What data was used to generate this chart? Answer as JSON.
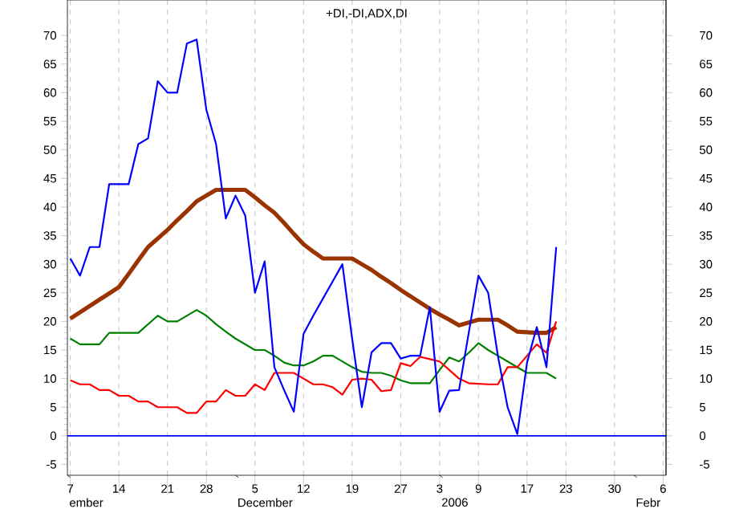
{
  "chart_data": {
    "type": "line",
    "title": "+DI,-DI,ADX,DI",
    "categories": [
      "7",
      null,
      null,
      null,
      null,
      "14",
      null,
      null,
      null,
      null,
      "21",
      null,
      null,
      null,
      "28",
      null,
      null,
      null,
      null,
      "5",
      null,
      null,
      null,
      null,
      "12",
      null,
      null,
      null,
      null,
      "19",
      null,
      null,
      null,
      null,
      "27",
      null,
      null,
      null,
      "3",
      null,
      null,
      null,
      "9",
      null,
      null,
      null,
      null,
      "17",
      null,
      null,
      null,
      "23",
      null,
      null,
      null,
      null,
      "30",
      null,
      null,
      null,
      null,
      "6"
    ],
    "ylim": [
      -6.9,
      76.2
    ],
    "yticks": [
      -5,
      0,
      5,
      10,
      15,
      20,
      25,
      30,
      35,
      40,
      45,
      50,
      55,
      60,
      65,
      70
    ],
    "y2lim": [
      -6.9,
      76.2
    ],
    "y2ticks": [
      -5,
      0,
      5,
      10,
      15,
      20,
      25,
      30,
      35,
      40,
      45,
      50,
      55,
      60,
      65,
      70
    ],
    "grid": "x",
    "annotations": [
      "ember",
      "December",
      "2006",
      "Febr"
    ],
    "ref_lines": [
      {
        "axis": "y",
        "value": 0,
        "color": "#0000ff"
      }
    ],
    "series": [
      {
        "color": "#993300",
        "values": [
          20.5,
          21.6,
          22.7,
          23.8,
          24.9,
          26,
          28.3,
          30.7,
          33,
          34.5,
          36,
          37.7,
          39.3,
          41,
          42,
          43,
          43,
          43,
          43,
          41.7,
          40.3,
          39,
          37.2,
          35.3,
          33.5,
          32.2,
          31,
          31,
          31,
          31,
          30,
          29,
          27.8,
          26.7,
          25.5,
          24.4,
          23.3,
          22.2,
          21.2,
          20.3,
          19.3,
          19.8,
          20.3,
          20.3,
          20.3,
          19.3,
          18.2,
          18.1,
          18,
          18,
          19,
          null,
          null,
          null,
          null,
          null,
          null,
          null,
          null,
          null,
          null,
          null
        ]
      },
      {
        "color": "#008000",
        "values": [
          17,
          16,
          16,
          16,
          18,
          18,
          18,
          18,
          19.5,
          21,
          20,
          20,
          21,
          22,
          21,
          19.5,
          18.2,
          17,
          16,
          15,
          15,
          14,
          12.8,
          12.3,
          12.3,
          13,
          14,
          14,
          13,
          12,
          11.2,
          11,
          11,
          10.5,
          9.7,
          9.2,
          9.2,
          9.2,
          11.5,
          13.7,
          13,
          14.5,
          16.2,
          15,
          14,
          13,
          12,
          11,
          11,
          11,
          10,
          null,
          null,
          null,
          null,
          null,
          null,
          null,
          null,
          null,
          null,
          null
        ]
      },
      {
        "color": "#ff0000",
        "values": [
          9.7,
          9,
          9,
          8,
          8,
          7,
          7,
          6,
          6,
          5,
          5,
          5,
          4,
          4,
          6,
          6,
          8,
          7,
          7,
          9,
          8,
          11,
          11,
          11,
          10,
          9,
          9,
          8.5,
          7.2,
          9.8,
          10,
          9.8,
          7.8,
          8,
          12.7,
          12.2,
          13.8,
          13.4,
          13,
          11.5,
          10,
          9.2,
          9.1,
          9,
          9,
          12,
          12,
          14,
          16,
          14.5,
          20,
          null,
          null,
          null,
          null,
          null,
          null,
          null,
          null,
          null,
          null,
          null
        ]
      },
      {
        "color": "#0000ff",
        "values": [
          31,
          28,
          33,
          33,
          44,
          44,
          44,
          51,
          52,
          62,
          60,
          60,
          68.6,
          69.3,
          57,
          51,
          38,
          42,
          38.5,
          25,
          30.5,
          12,
          8,
          4.2,
          17.8,
          21,
          24,
          27,
          30,
          17,
          5,
          14.6,
          16.2,
          16.2,
          13.5,
          14,
          14,
          22.5,
          4.2,
          7.9,
          8,
          18,
          28,
          25,
          14,
          5,
          0.3,
          12.8,
          19,
          12,
          33,
          null,
          null,
          null,
          null,
          null,
          null,
          null,
          null,
          null,
          null,
          null
        ]
      }
    ]
  }
}
